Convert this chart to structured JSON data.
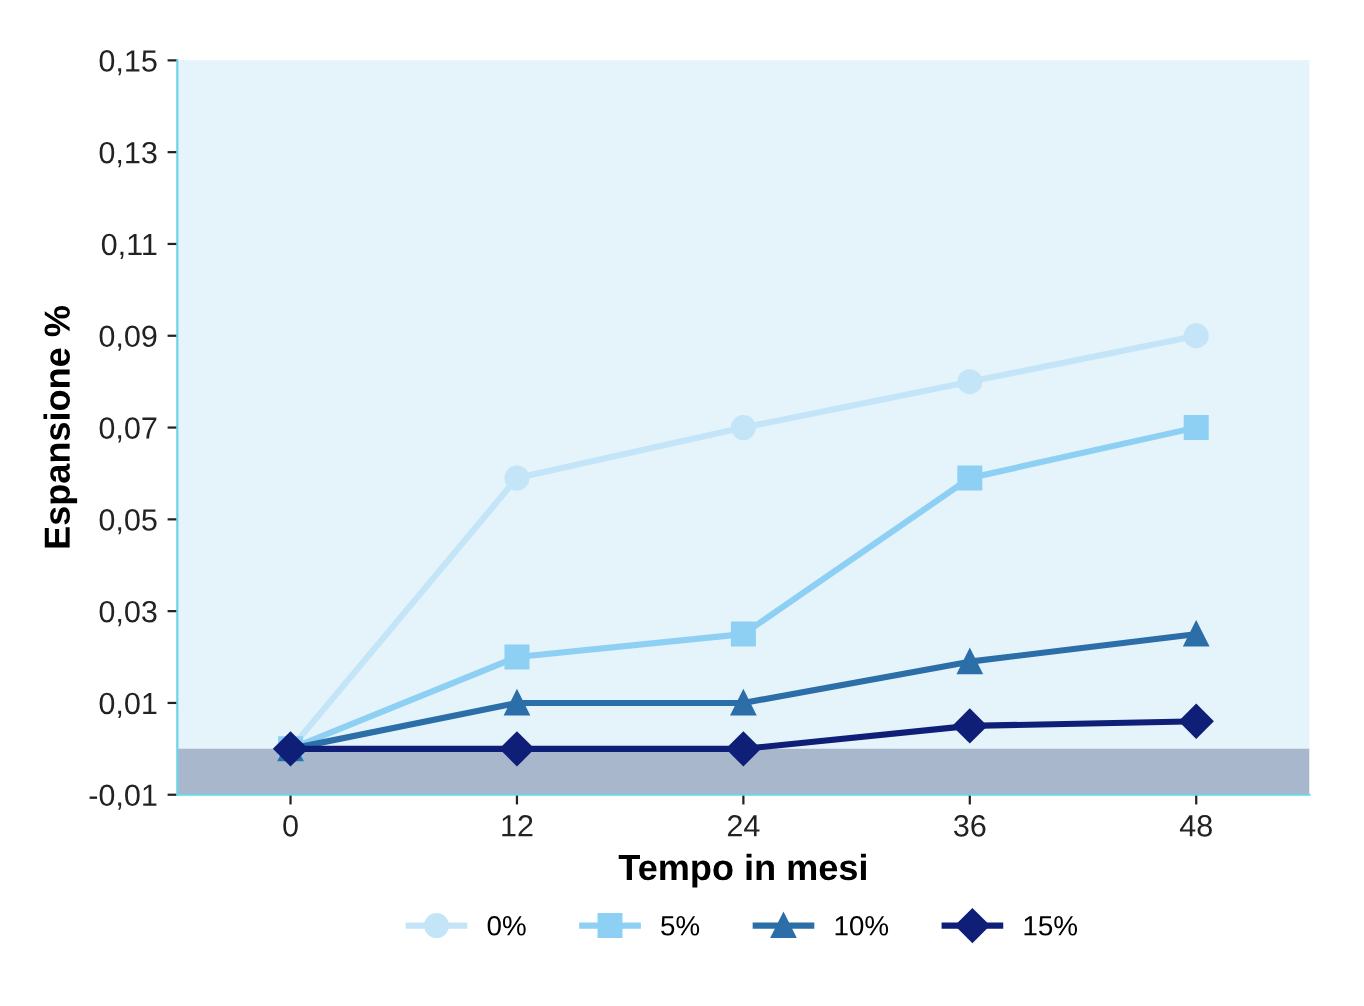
{
  "chart_data": {
    "type": "line",
    "xlabel": "Tempo in mesi",
    "ylabel": "Espansione %",
    "categories": [
      "0",
      "12",
      "24",
      "36",
      "48"
    ],
    "series": [
      {
        "name": "0%",
        "color": "#c3e5f7",
        "marker": "circle",
        "values": [
          0,
          0.059,
          0.07,
          0.08,
          0.09
        ]
      },
      {
        "name": "5%",
        "color": "#8dd0f3",
        "marker": "square",
        "values": [
          0,
          0.02,
          0.025,
          0.059,
          0.07
        ]
      },
      {
        "name": "10%",
        "color": "#2b6ea8",
        "marker": "triangle",
        "values": [
          0,
          0.01,
          0.01,
          0.019,
          0.025
        ]
      },
      {
        "name": "15%",
        "color": "#0f1f78",
        "marker": "diamond",
        "values": [
          0,
          0,
          0,
          0.005,
          0.006
        ]
      }
    ],
    "ylim": [
      -0.01,
      0.15
    ],
    "yticks": [
      {
        "value": -0.01,
        "label": "-0,01"
      },
      {
        "value": 0.01,
        "label": "0,01"
      },
      {
        "value": 0.03,
        "label": "0,03"
      },
      {
        "value": 0.05,
        "label": "0,05"
      },
      {
        "value": 0.07,
        "label": "0,07"
      },
      {
        "value": 0.09,
        "label": "0,09"
      },
      {
        "value": 0.11,
        "label": "0,11"
      },
      {
        "value": 0.13,
        "label": "0,13"
      },
      {
        "value": 0.15,
        "label": "0,15"
      }
    ],
    "bands": [
      {
        "axis": "y",
        "from": -0.01,
        "to": 0,
        "color": "#a8b7cb"
      }
    ],
    "grid": false,
    "legend": "bottom",
    "line_style": "solid"
  }
}
